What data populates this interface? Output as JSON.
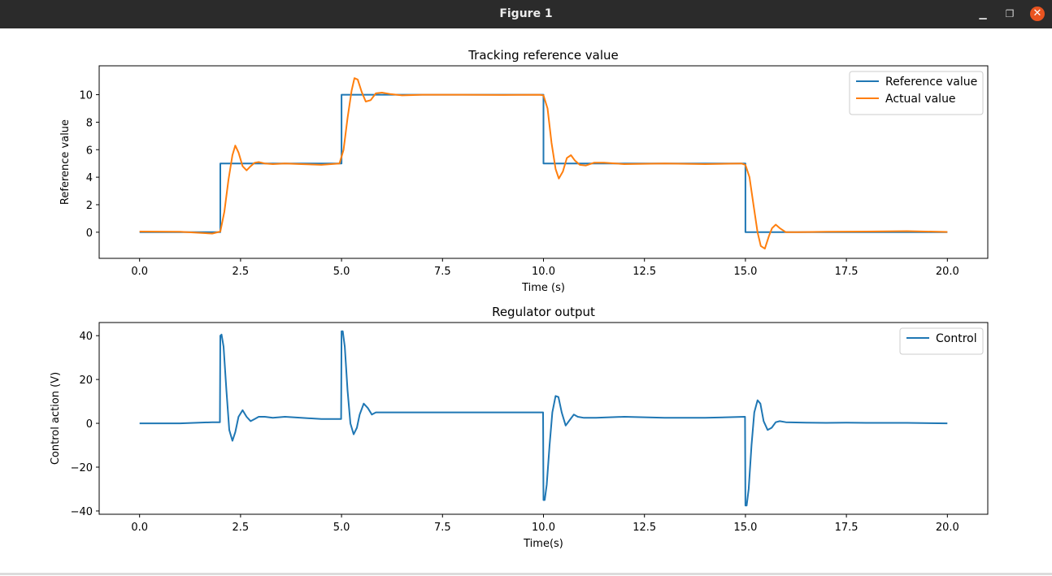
{
  "window": {
    "title": "Figure 1",
    "close_icon": "close-icon",
    "minimize_icon": "minimize-icon",
    "maximize_icon": "maximize-icon"
  },
  "chart_data": [
    {
      "type": "line",
      "title": "Tracking reference value",
      "xlabel": "Time (s)",
      "ylabel": "Reference value",
      "xlim": [
        -1.0,
        21.0
      ],
      "ylim": [
        -1.9,
        12.1
      ],
      "xticks": [
        0.0,
        2.5,
        5.0,
        7.5,
        10.0,
        12.5,
        15.0,
        17.5,
        20.0
      ],
      "xtick_labels": [
        "0.0",
        "2.5",
        "5.0",
        "7.5",
        "10.0",
        "12.5",
        "15.0",
        "17.5",
        "20.0"
      ],
      "yticks": [
        0,
        2,
        4,
        6,
        8,
        10
      ],
      "ytick_labels": [
        "0",
        "2",
        "4",
        "6",
        "8",
        "10"
      ],
      "grid": false,
      "legend": "top-right",
      "series": [
        {
          "name": "Reference value",
          "color": "#1f77b4",
          "step": true,
          "x": [
            0,
            2,
            2,
            5,
            5,
            10,
            10,
            15,
            15,
            20
          ],
          "y": [
            0,
            0,
            5,
            5,
            10,
            10,
            5,
            5,
            0,
            0
          ]
        },
        {
          "name": "Actual value",
          "color": "#ff7f0e",
          "x": [
            0,
            1.0,
            1.8,
            2.0,
            2.1,
            2.2,
            2.3,
            2.37,
            2.45,
            2.55,
            2.65,
            2.75,
            2.85,
            2.95,
            3.1,
            3.3,
            3.6,
            4.0,
            4.5,
            4.95,
            5.05,
            5.15,
            5.25,
            5.32,
            5.4,
            5.5,
            5.6,
            5.72,
            5.85,
            6.0,
            6.2,
            6.5,
            7.0,
            8.0,
            9.0,
            9.9,
            10.0,
            10.1,
            10.2,
            10.3,
            10.38,
            10.48,
            10.58,
            10.68,
            10.78,
            10.9,
            11.05,
            11.25,
            11.5,
            12.0,
            13.0,
            14.0,
            14.9,
            15.0,
            15.1,
            15.2,
            15.3,
            15.38,
            15.48,
            15.58,
            15.66,
            15.75,
            15.85,
            16.0,
            16.3,
            17.0,
            18.0,
            19.0,
            20.0
          ],
          "y": [
            0.05,
            0.03,
            -0.1,
            0.05,
            1.5,
            3.8,
            5.6,
            6.3,
            5.8,
            4.8,
            4.5,
            4.8,
            5.05,
            5.1,
            5.0,
            4.95,
            5.0,
            4.95,
            4.9,
            5.0,
            6.0,
            8.3,
            10.3,
            11.2,
            11.1,
            10.2,
            9.5,
            9.6,
            10.1,
            10.15,
            10.05,
            9.95,
            10.0,
            10.0,
            9.98,
            10.0,
            9.95,
            9.0,
            6.5,
            4.6,
            3.9,
            4.4,
            5.4,
            5.6,
            5.2,
            4.9,
            4.85,
            5.05,
            5.05,
            4.95,
            5.0,
            4.95,
            5.0,
            4.9,
            4.0,
            2.0,
            0.0,
            -1.0,
            -1.2,
            -0.3,
            0.3,
            0.55,
            0.3,
            0.0,
            0.0,
            0.03,
            0.05,
            0.08,
            0.02
          ]
        }
      ]
    },
    {
      "type": "line",
      "title": "Regulator output",
      "xlabel": "Time(s)",
      "ylabel": "Control action (V)",
      "xlim": [
        -1.0,
        21.0
      ],
      "ylim": [
        -41.5,
        46.0
      ],
      "xticks": [
        0.0,
        2.5,
        5.0,
        7.5,
        10.0,
        12.5,
        15.0,
        17.5,
        20.0
      ],
      "xtick_labels": [
        "0.0",
        "2.5",
        "5.0",
        "7.5",
        "10.0",
        "12.5",
        "15.0",
        "17.5",
        "20.0"
      ],
      "yticks": [
        -40,
        -20,
        0,
        20,
        40
      ],
      "ytick_labels": [
        "−40",
        "−20",
        "0",
        "20",
        "40"
      ],
      "grid": false,
      "legend": "top-right",
      "series": [
        {
          "name": "Control",
          "color": "#1f77b4",
          "x": [
            0,
            1.0,
            1.8,
            1.99,
            2.0,
            2.03,
            2.08,
            2.15,
            2.22,
            2.3,
            2.37,
            2.45,
            2.55,
            2.65,
            2.75,
            2.85,
            2.95,
            3.1,
            3.3,
            3.6,
            4.0,
            4.5,
            4.99,
            5.0,
            5.03,
            5.08,
            5.15,
            5.22,
            5.3,
            5.38,
            5.45,
            5.55,
            5.65,
            5.75,
            5.85,
            6.0,
            6.3,
            7.0,
            8.0,
            9.0,
            9.99,
            10.0,
            10.03,
            10.08,
            10.15,
            10.22,
            10.3,
            10.37,
            10.45,
            10.55,
            10.65,
            10.75,
            10.85,
            11.0,
            11.3,
            12.0,
            13.0,
            14.0,
            14.99,
            15.0,
            15.03,
            15.08,
            15.15,
            15.22,
            15.3,
            15.37,
            15.45,
            15.55,
            15.65,
            15.75,
            15.85,
            16.0,
            16.5,
            17.0,
            17.5,
            18.0,
            19.0,
            20.0
          ],
          "y": [
            0,
            0,
            0.5,
            0.5,
            40,
            40.5,
            35,
            15,
            -3,
            -8,
            -4,
            3,
            6,
            3,
            1,
            2,
            3,
            3,
            2.5,
            3,
            2.5,
            2,
            2,
            42,
            42,
            35,
            15,
            0,
            -5,
            -2,
            4,
            9,
            7,
            4,
            5,
            5,
            5,
            5,
            5,
            5,
            5,
            -35,
            -35,
            -28,
            -10,
            5,
            12.5,
            12,
            5,
            -1,
            1.5,
            4,
            3,
            2.5,
            2.5,
            3,
            2.5,
            2.5,
            3,
            -37.5,
            -37.5,
            -30,
            -10,
            5,
            10.5,
            9,
            1,
            -3,
            -2,
            0.5,
            1,
            0.5,
            0.3,
            0.2,
            0.3,
            0.2,
            0.2,
            0
          ]
        }
      ]
    }
  ]
}
